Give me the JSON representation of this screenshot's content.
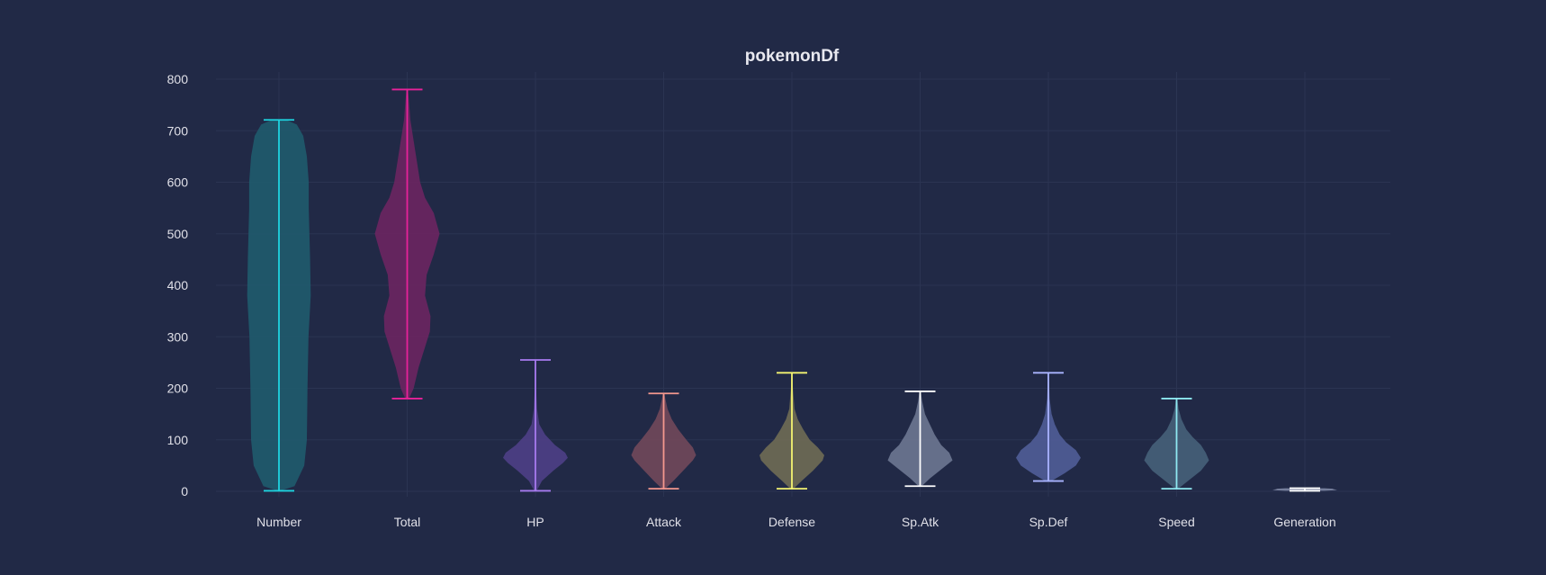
{
  "chart_data": {
    "type": "violin",
    "title": "pokemonDf",
    "xlabel": "",
    "ylabel": "",
    "ylim": [
      0,
      800
    ],
    "yticks": [
      0,
      100,
      200,
      300,
      400,
      500,
      600,
      700,
      800
    ],
    "grid": true,
    "categories": [
      "Number",
      "Total",
      "HP",
      "Attack",
      "Defense",
      "Sp.Atk",
      "Sp.Def",
      "Speed",
      "Generation"
    ],
    "series": [
      {
        "category": "Number",
        "color": "#1ed4e0",
        "fill": "#1f5a6c",
        "min": 1,
        "max": 721,
        "profile": [
          [
            1,
            0.05
          ],
          [
            10,
            0.48
          ],
          [
            50,
            0.78
          ],
          [
            100,
            0.86
          ],
          [
            200,
            0.88
          ],
          [
            300,
            0.91
          ],
          [
            380,
            0.98
          ],
          [
            450,
            0.96
          ],
          [
            550,
            0.92
          ],
          [
            600,
            0.92
          ],
          [
            650,
            0.86
          ],
          [
            690,
            0.75
          ],
          [
            712,
            0.55
          ],
          [
            721,
            0.22
          ]
        ]
      },
      {
        "category": "Total",
        "color": "#e8229a",
        "fill": "#6a2561",
        "min": 180,
        "max": 780,
        "profile": [
          [
            180,
            0.06
          ],
          [
            200,
            0.2
          ],
          [
            240,
            0.35
          ],
          [
            280,
            0.55
          ],
          [
            310,
            0.7
          ],
          [
            340,
            0.72
          ],
          [
            380,
            0.55
          ],
          [
            420,
            0.6
          ],
          [
            460,
            0.82
          ],
          [
            500,
            1.0
          ],
          [
            540,
            0.82
          ],
          [
            570,
            0.55
          ],
          [
            600,
            0.4
          ],
          [
            640,
            0.3
          ],
          [
            680,
            0.2
          ],
          [
            720,
            0.1
          ],
          [
            760,
            0.05
          ],
          [
            780,
            0.02
          ]
        ]
      },
      {
        "category": "HP",
        "color": "#a87bf0",
        "fill": "#4d3f86",
        "min": 1,
        "max": 255,
        "profile": [
          [
            1,
            0.04
          ],
          [
            20,
            0.2
          ],
          [
            40,
            0.55
          ],
          [
            55,
            0.85
          ],
          [
            65,
            1.0
          ],
          [
            75,
            0.92
          ],
          [
            90,
            0.6
          ],
          [
            110,
            0.3
          ],
          [
            130,
            0.12
          ],
          [
            160,
            0.05
          ],
          [
            200,
            0.02
          ],
          [
            255,
            0.01
          ]
        ]
      },
      {
        "category": "Attack",
        "color": "#f4978e",
        "fill": "#70485a",
        "min": 5,
        "max": 190,
        "profile": [
          [
            5,
            0.05
          ],
          [
            20,
            0.3
          ],
          [
            40,
            0.6
          ],
          [
            60,
            0.9
          ],
          [
            70,
            1.0
          ],
          [
            85,
            0.9
          ],
          [
            100,
            0.7
          ],
          [
            120,
            0.45
          ],
          [
            140,
            0.25
          ],
          [
            160,
            0.12
          ],
          [
            180,
            0.05
          ],
          [
            190,
            0.02
          ]
        ]
      },
      {
        "category": "Defense",
        "color": "#f4f471",
        "fill": "#6e6a55",
        "min": 5,
        "max": 230,
        "profile": [
          [
            5,
            0.05
          ],
          [
            20,
            0.3
          ],
          [
            40,
            0.65
          ],
          [
            60,
            0.95
          ],
          [
            70,
            1.0
          ],
          [
            85,
            0.8
          ],
          [
            100,
            0.55
          ],
          [
            120,
            0.35
          ],
          [
            140,
            0.18
          ],
          [
            160,
            0.08
          ],
          [
            200,
            0.03
          ],
          [
            230,
            0.01
          ]
        ]
      },
      {
        "category": "Sp.Atk",
        "color": "#ffffff",
        "fill": "#6b7590",
        "min": 10,
        "max": 194,
        "profile": [
          [
            10,
            0.05
          ],
          [
            25,
            0.3
          ],
          [
            45,
            0.7
          ],
          [
            60,
            1.0
          ],
          [
            75,
            0.9
          ],
          [
            90,
            0.65
          ],
          [
            110,
            0.45
          ],
          [
            130,
            0.3
          ],
          [
            150,
            0.15
          ],
          [
            175,
            0.06
          ],
          [
            194,
            0.02
          ]
        ]
      },
      {
        "category": "Sp.Def",
        "color": "#a9b4ff",
        "fill": "#4f5c96",
        "min": 20,
        "max": 230,
        "profile": [
          [
            20,
            0.1
          ],
          [
            35,
            0.5
          ],
          [
            50,
            0.85
          ],
          [
            65,
            1.0
          ],
          [
            80,
            0.85
          ],
          [
            95,
            0.55
          ],
          [
            110,
            0.35
          ],
          [
            130,
            0.2
          ],
          [
            150,
            0.1
          ],
          [
            180,
            0.04
          ],
          [
            230,
            0.01
          ]
        ]
      },
      {
        "category": "Speed",
        "color": "#8ee8f0",
        "fill": "#456078",
        "min": 5,
        "max": 180,
        "profile": [
          [
            5,
            0.05
          ],
          [
            20,
            0.35
          ],
          [
            40,
            0.75
          ],
          [
            60,
            1.0
          ],
          [
            75,
            0.9
          ],
          [
            90,
            0.75
          ],
          [
            105,
            0.5
          ],
          [
            120,
            0.3
          ],
          [
            140,
            0.15
          ],
          [
            160,
            0.06
          ],
          [
            180,
            0.02
          ]
        ]
      },
      {
        "category": "Generation",
        "color": "#ffffff",
        "fill": "#7d86a3",
        "min": 1,
        "max": 6,
        "profile": [
          [
            1,
            0.6
          ],
          [
            2,
            0.9
          ],
          [
            3,
            1.0
          ],
          [
            4,
            0.9
          ],
          [
            5,
            0.85
          ],
          [
            6,
            0.6
          ]
        ]
      }
    ]
  }
}
